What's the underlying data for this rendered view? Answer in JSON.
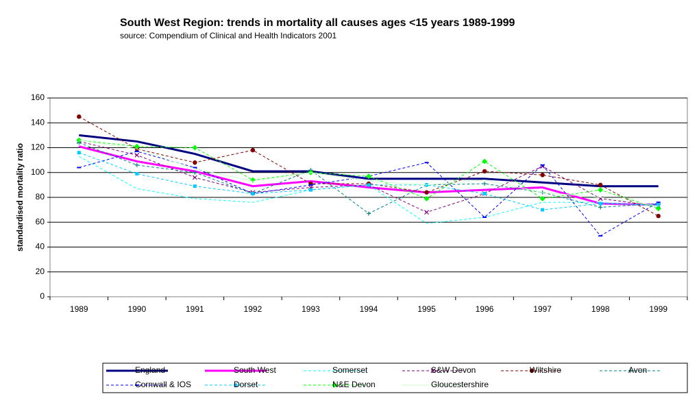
{
  "chart_data": {
    "type": "line",
    "title": "South West Region:  trends in mortality all causes ages <15 years  1989-1999",
    "subtitle": "source: Compendium of Clinical and Health Indicators  2001",
    "y_label": "standardised mortality ratio",
    "categories": [
      "1989",
      "1990",
      "1991",
      "1992",
      "1993",
      "1994",
      "1995",
      "1996",
      "1997",
      "1998",
      "1999"
    ],
    "ylim": [
      0,
      160
    ],
    "yticks": [
      0,
      20,
      40,
      60,
      80,
      100,
      120,
      140,
      160
    ],
    "grid": true,
    "legend": "bottom",
    "series": [
      {
        "name": "England",
        "color": "#000080",
        "width": 3,
        "dash": false,
        "marker": "none",
        "values": [
          130,
          125,
          115,
          101,
          101,
          95,
          95,
          95,
          92,
          89,
          89
        ]
      },
      {
        "name": "South West",
        "color": "#ff00ff",
        "width": 3,
        "dash": false,
        "marker": "none",
        "values": [
          121,
          109,
          101,
          89,
          93,
          88,
          84,
          86,
          88,
          75,
          74
        ]
      },
      {
        "name": "Somerset",
        "color": "#00ffff",
        "width": 1,
        "dash": true,
        "marker": "none",
        "values": [
          113,
          87,
          79,
          76,
          86,
          90,
          59,
          64,
          76,
          76,
          73
        ]
      },
      {
        "name": "S&W Devon",
        "color": "#800080",
        "width": 1,
        "dash": true,
        "marker": "x",
        "values": [
          125,
          114,
          96,
          84,
          88,
          90,
          68,
          83,
          105,
          79,
          73
        ]
      },
      {
        "name": "Wiltshire",
        "color": "#800000",
        "width": 1,
        "dash": true,
        "marker": "circle",
        "values": [
          145,
          119,
          108,
          118,
          91,
          91,
          84,
          101,
          98,
          90,
          65
        ]
      },
      {
        "name": "Avon",
        "color": "#008080",
        "width": 1,
        "dash": true,
        "marker": "plus",
        "values": [
          124,
          106,
          100,
          83,
          102,
          67,
          90,
          91,
          84,
          72,
          75
        ]
      },
      {
        "name": "Cornwall & IOS",
        "color": "#0000ff",
        "width": 1,
        "dash": true,
        "marker": "dash",
        "values": [
          104,
          117,
          104,
          83,
          90,
          97,
          108,
          64,
          106,
          49,
          76
        ]
      },
      {
        "name": "Dorset",
        "color": "#00ccff",
        "width": 1,
        "dash": true,
        "marker": "square",
        "values": [
          116,
          99,
          89,
          83,
          86,
          90,
          90,
          83,
          70,
          75,
          74
        ]
      },
      {
        "name": "N&E Devon",
        "color": "#00ff00",
        "width": 1,
        "dash": true,
        "marker": "diamond",
        "values": [
          126,
          121,
          120,
          94,
          100,
          97,
          79,
          109,
          79,
          86,
          71
        ]
      },
      {
        "name": "Gloucestershire",
        "color": "#ccffcc",
        "width": 1,
        "dash": false,
        "marker": "none",
        "values": [
          126,
          119,
          103,
          93,
          100,
          93,
          90,
          94,
          84,
          80,
          73
        ]
      }
    ]
  }
}
